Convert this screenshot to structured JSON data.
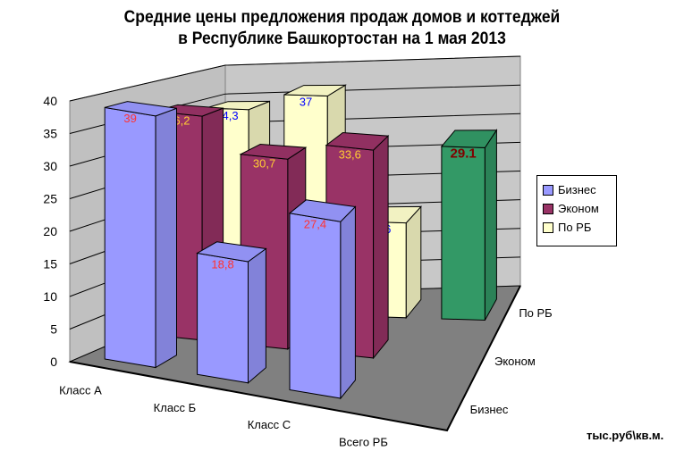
{
  "title_line1": "Средние цены предложения продаж домов и коттеджей",
  "title_line2": "в Республике Башкортостан на 1 мая 2013",
  "unit_label": "тыс.руб\\кв.м.",
  "legend": [
    {
      "label": "Бизнес",
      "color": "#9999ff"
    },
    {
      "label": "Эконом",
      "color": "#993366"
    },
    {
      "label": "По РБ",
      "color": "#ffffcc"
    }
  ],
  "chart_data": {
    "type": "bar",
    "subtype": "3d-column",
    "title": "Средние цены предложения продаж домов и коттеджей в Республике Башкортостан на 1 мая 2013",
    "categories": [
      "Класс А",
      "Класс Б",
      "Класс С",
      "Всего РБ"
    ],
    "depth_categories": [
      "Бизнес",
      "Эконом",
      "По РБ"
    ],
    "series": [
      {
        "name": "Бизнес",
        "color": "#9999ff",
        "values": [
          39,
          18.8,
          27.4,
          null
        ],
        "labels": [
          "39",
          "18,8",
          "27,4",
          ""
        ],
        "label_color": "#ff3333"
      },
      {
        "name": "Эконом",
        "color": "#993366",
        "values": [
          36.2,
          30.7,
          33.6,
          null
        ],
        "labels": [
          "36,2",
          "30,7",
          "33,6",
          ""
        ],
        "label_color": "#ffcc33"
      },
      {
        "name": "По РБ",
        "color": "#ffffcc",
        "values": [
          34.3,
          37,
          16,
          29.1
        ],
        "labels": [
          "34,3",
          "37",
          "16",
          "29.1"
        ],
        "label_color": "#0000ff"
      }
    ],
    "total_bar": {
      "category": "Всего РБ",
      "value": 29.1,
      "label": "29.1",
      "color": "#339966",
      "label_color": "#800000"
    },
    "yticks": [
      0,
      5,
      10,
      15,
      20,
      25,
      30,
      35,
      40
    ],
    "ylim": [
      0,
      40
    ],
    "ylabel": "тыс.руб\\кв.м.",
    "xlabel": "",
    "grid": true,
    "legend_position": "right"
  }
}
